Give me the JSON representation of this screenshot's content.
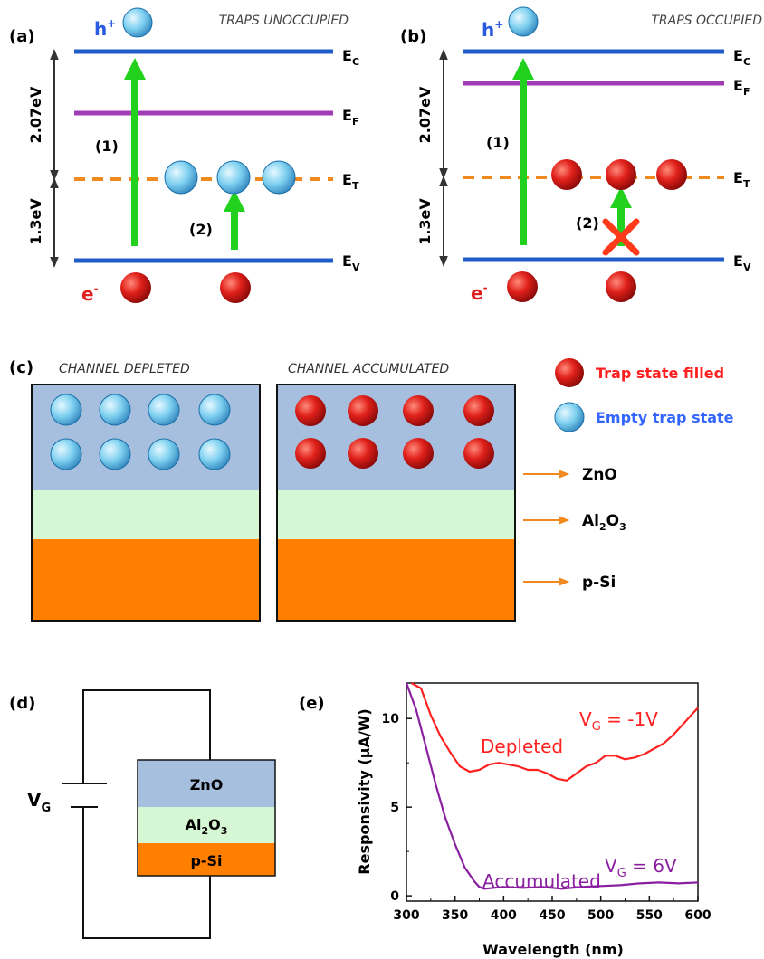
{
  "panel_a": {
    "tag": "(a)",
    "title": "TRAPS UNOCCUPIED",
    "hole_label": "h",
    "hole_sup": "+",
    "electron_label": "e",
    "electron_sup": "-",
    "ec": "E",
    "ec_sub": "C",
    "ef": "E",
    "ef_sub": "F",
    "et": "E",
    "et_sub": "T",
    "ev": "E",
    "ev_sub": "V",
    "gap_upper": "2.07eV",
    "gap_lower": "1.3eV",
    "trans1": "(1)",
    "trans2": "(2)"
  },
  "panel_b": {
    "tag": "(b)",
    "title": "TRAPS OCCUPIED",
    "hole_label": "h",
    "hole_sup": "+",
    "electron_label": "e",
    "electron_sup": "-",
    "ec": "E",
    "ec_sub": "C",
    "ef": "E",
    "ef_sub": "F",
    "et": "E",
    "et_sub": "T",
    "ev": "E",
    "ev_sub": "V",
    "gap_upper": "2.07eV",
    "gap_lower": "1.3eV",
    "trans1": "(1)",
    "trans2": "(2)"
  },
  "panel_c": {
    "tag": "(c)",
    "title_left": "CHANNEL DEPLETED",
    "title_right": "CHANNEL ACCUMULATED",
    "legend_filled": "Trap state filled",
    "legend_empty": "Empty trap state",
    "layer_zno": "ZnO",
    "layer_al": "Al",
    "layer_al_sub1": "2",
    "layer_o": "O",
    "layer_al_sub2": "3",
    "layer_si": "p-Si"
  },
  "panel_d": {
    "tag": "(d)",
    "vg": "V",
    "vg_sub": "G",
    "layer_zno": "ZnO",
    "layer_al": "Al",
    "layer_al_sub1": "2",
    "layer_o": "O",
    "layer_al_sub2": "3",
    "layer_si": "p-Si"
  },
  "colors": {
    "band_blue": "#1f5cc8",
    "fermi_purple": "#a03cb4",
    "trap_orange": "#f08a1e",
    "arrow_green": "#22d11e",
    "zno": "#a6bfdf",
    "al2o3": "#d6f7d4",
    "psi": "#ff7f00",
    "red_curve": "#ff2020",
    "purple_curve": "#8a1fa0"
  },
  "chart_data": {
    "type": "line",
    "tag": "(e)",
    "xlabel": "Wavelength (nm)",
    "ylabel": "Responsivity (μA/W)",
    "xlim": [
      300,
      600
    ],
    "ylim": [
      -0.3,
      12
    ],
    "xticks": [
      300,
      350,
      400,
      450,
      500,
      550,
      600
    ],
    "yticks": [
      0,
      5,
      10
    ],
    "series": [
      {
        "name": "Depleted",
        "annotation": "V",
        "annotation_sub": "G",
        "annotation_val": " = -1V",
        "x": [
          305,
          315,
          325,
          335,
          345,
          355,
          365,
          375,
          385,
          395,
          405,
          415,
          425,
          435,
          445,
          455,
          465,
          475,
          485,
          495,
          505,
          515,
          525,
          535,
          545,
          555,
          565,
          575,
          585,
          595,
          600
        ],
        "values": [
          12.5,
          11.7,
          10.2,
          9.0,
          8.1,
          7.3,
          7.0,
          7.1,
          7.4,
          7.5,
          7.4,
          7.3,
          7.1,
          7.1,
          6.9,
          6.6,
          6.5,
          6.9,
          7.3,
          7.5,
          7.9,
          7.9,
          7.7,
          7.8,
          8.0,
          8.3,
          8.6,
          9.1,
          9.7,
          10.3,
          10.6
        ]
      },
      {
        "name": "Accumulated",
        "annotation": "V",
        "annotation_sub": "G",
        "annotation_val": " = 6V",
        "x": [
          300,
          310,
          320,
          330,
          340,
          350,
          360,
          370,
          375,
          380,
          390,
          400,
          420,
          440,
          460,
          480,
          500,
          520,
          540,
          560,
          580,
          600
        ],
        "values": [
          12.0,
          10.5,
          8.4,
          6.3,
          4.4,
          2.9,
          1.6,
          0.8,
          0.5,
          0.4,
          0.45,
          0.5,
          0.45,
          0.5,
          0.4,
          0.5,
          0.55,
          0.6,
          0.7,
          0.75,
          0.7,
          0.75
        ]
      }
    ]
  }
}
